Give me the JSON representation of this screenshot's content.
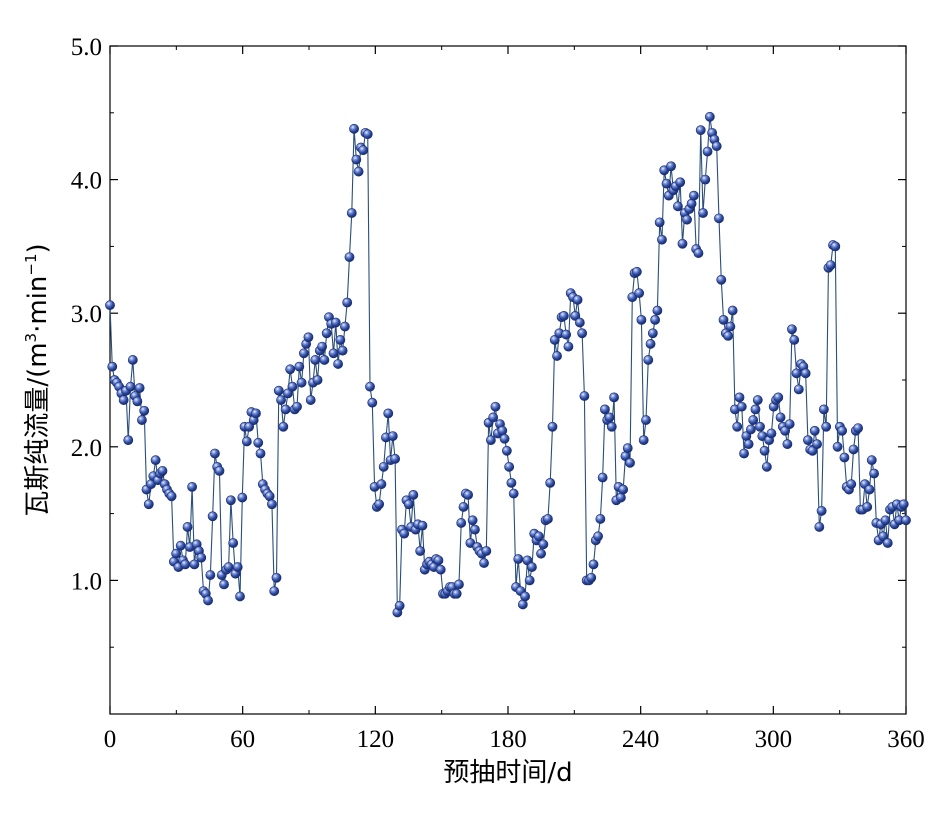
{
  "chart_data": {
    "type": "line",
    "xlabel": "预抽时间/d",
    "ylabel_main": "瓦斯纯流量/(m",
    "ylabel_sup1": "3",
    "ylabel_mid": "·min",
    "ylabel_sup2": "−1",
    "ylabel_end": ")",
    "xlim": [
      0,
      360
    ],
    "ylim": [
      0,
      5
    ],
    "x_ticks": [
      0,
      60,
      120,
      180,
      240,
      300,
      360
    ],
    "x_tick_labels": [
      "0",
      "60",
      "120",
      "180",
      "240",
      "300",
      "360"
    ],
    "y_ticks": [
      1,
      2,
      3,
      4,
      5
    ],
    "y_tick_labels": [
      "1.0",
      "2.0",
      "3.0",
      "4.0",
      "5.0"
    ],
    "grid": false,
    "marker": "sphere",
    "colors": {
      "marker": "#2c4a9e",
      "line": "#2a4f7a"
    },
    "series": [
      {
        "values": [
          3.06,
          2.6,
          2.5,
          2.48,
          2.45,
          2.4,
          2.35,
          2.42,
          2.05,
          2.45,
          2.65,
          2.38,
          2.34,
          2.44,
          2.2,
          2.27,
          1.68,
          1.57,
          1.72,
          1.78,
          1.9,
          1.75,
          1.8,
          1.82,
          1.72,
          1.68,
          1.65,
          1.63,
          1.14,
          1.2,
          1.1,
          1.26,
          1.15,
          1.12,
          1.4,
          1.25,
          1.7,
          1.12,
          1.27,
          1.22,
          1.17,
          0.92,
          0.9,
          0.85,
          1.04,
          1.48,
          1.95,
          1.85,
          1.82,
          1.04,
          0.97,
          1.08,
          1.1,
          1.6,
          1.28,
          1.05,
          1.1,
          0.88,
          1.62,
          2.15,
          2.04,
          2.15,
          2.26,
          2.2,
          2.25,
          2.03,
          1.95,
          1.72,
          1.68,
          1.65,
          1.63,
          1.57,
          0.92,
          1.02,
          2.42,
          2.35,
          2.15,
          2.28,
          2.4,
          2.58,
          2.45,
          2.28,
          2.3,
          2.6,
          2.48,
          2.7,
          2.77,
          2.82,
          2.35,
          2.48,
          2.65,
          2.5,
          2.72,
          2.75,
          2.65,
          2.85,
          2.97,
          2.92,
          2.7,
          2.93,
          2.62,
          2.8,
          2.72,
          2.9,
          3.08,
          3.42,
          3.75,
          4.38,
          4.15,
          4.06,
          4.24,
          4.22,
          4.35,
          4.34,
          2.45,
          2.33,
          1.7,
          1.55,
          1.57,
          1.72,
          1.85,
          2.07,
          2.25,
          1.9,
          2.08,
          1.91,
          0.76,
          0.81,
          1.38,
          1.35,
          1.6,
          1.57,
          1.4,
          1.64,
          1.38,
          1.42,
          1.22,
          1.41,
          1.08,
          1.12,
          1.14,
          1.12,
          1.1,
          1.16,
          1.15,
          1.08,
          0.9,
          0.9,
          0.92,
          0.95,
          0.95,
          0.9,
          0.9,
          0.97,
          1.43,
          1.55,
          1.65,
          1.64,
          1.28,
          1.45,
          1.38,
          1.25,
          1.22,
          1.2,
          1.13,
          1.22,
          2.18,
          2.05,
          2.22,
          2.3,
          2.1,
          2.17,
          2.12,
          2.06,
          1.97,
          1.85,
          1.73,
          1.65,
          0.95,
          1.16,
          0.92,
          0.82,
          0.88,
          1.15,
          1.0,
          1.1,
          1.35,
          1.3,
          1.33,
          1.2,
          1.27,
          1.45,
          1.46,
          1.73,
          2.15,
          2.8,
          2.68,
          2.85,
          2.97,
          2.98,
          2.84,
          2.75,
          3.15,
          3.12,
          2.98,
          3.1,
          2.93,
          2.85,
          2.38,
          1.0,
          1.0,
          1.02,
          1.12,
          1.3,
          1.33,
          1.46,
          1.77,
          2.28,
          2.2,
          2.22,
          2.15,
          2.37,
          1.6,
          1.7,
          1.62,
          1.68,
          1.93,
          1.99,
          1.88,
          3.12,
          3.3,
          3.31,
          3.15,
          2.95,
          2.05,
          2.2,
          2.65,
          2.77,
          2.85,
          2.95,
          3.02,
          3.68,
          3.55,
          4.07,
          3.97,
          3.88,
          4.1,
          3.92,
          3.95,
          3.8,
          3.98,
          3.52,
          3.75,
          3.7,
          3.78,
          3.82,
          3.88,
          3.48,
          3.45,
          4.37,
          3.75,
          4.0,
          4.21,
          4.47,
          4.35,
          4.3,
          4.25,
          3.71,
          3.25,
          2.95,
          2.85,
          2.83,
          2.9,
          3.02,
          2.28,
          2.15,
          2.37,
          2.3,
          1.95,
          2.08,
          2.02,
          2.13,
          2.2,
          2.28,
          2.35,
          2.15,
          2.08,
          1.97,
          1.85,
          2.05,
          2.1,
          2.3,
          2.35,
          2.37,
          2.22,
          2.15,
          2.12,
          2.02,
          2.17,
          2.88,
          2.8,
          2.55,
          2.43,
          2.62,
          2.6,
          2.55,
          2.05,
          1.98,
          1.97,
          2.12,
          2.02,
          1.4,
          1.52,
          2.28,
          2.15,
          3.34,
          3.36,
          3.51,
          3.5,
          2.0,
          2.15,
          2.12,
          1.92,
          1.7,
          1.68,
          1.72,
          1.98,
          2.12,
          2.14,
          1.53,
          1.53,
          1.72,
          1.55,
          1.68,
          1.9,
          1.8,
          1.43,
          1.3,
          1.42,
          1.33,
          1.45,
          1.28,
          1.53,
          1.55,
          1.42,
          1.57,
          1.45,
          1.55,
          1.57,
          1.45
        ]
      }
    ]
  }
}
